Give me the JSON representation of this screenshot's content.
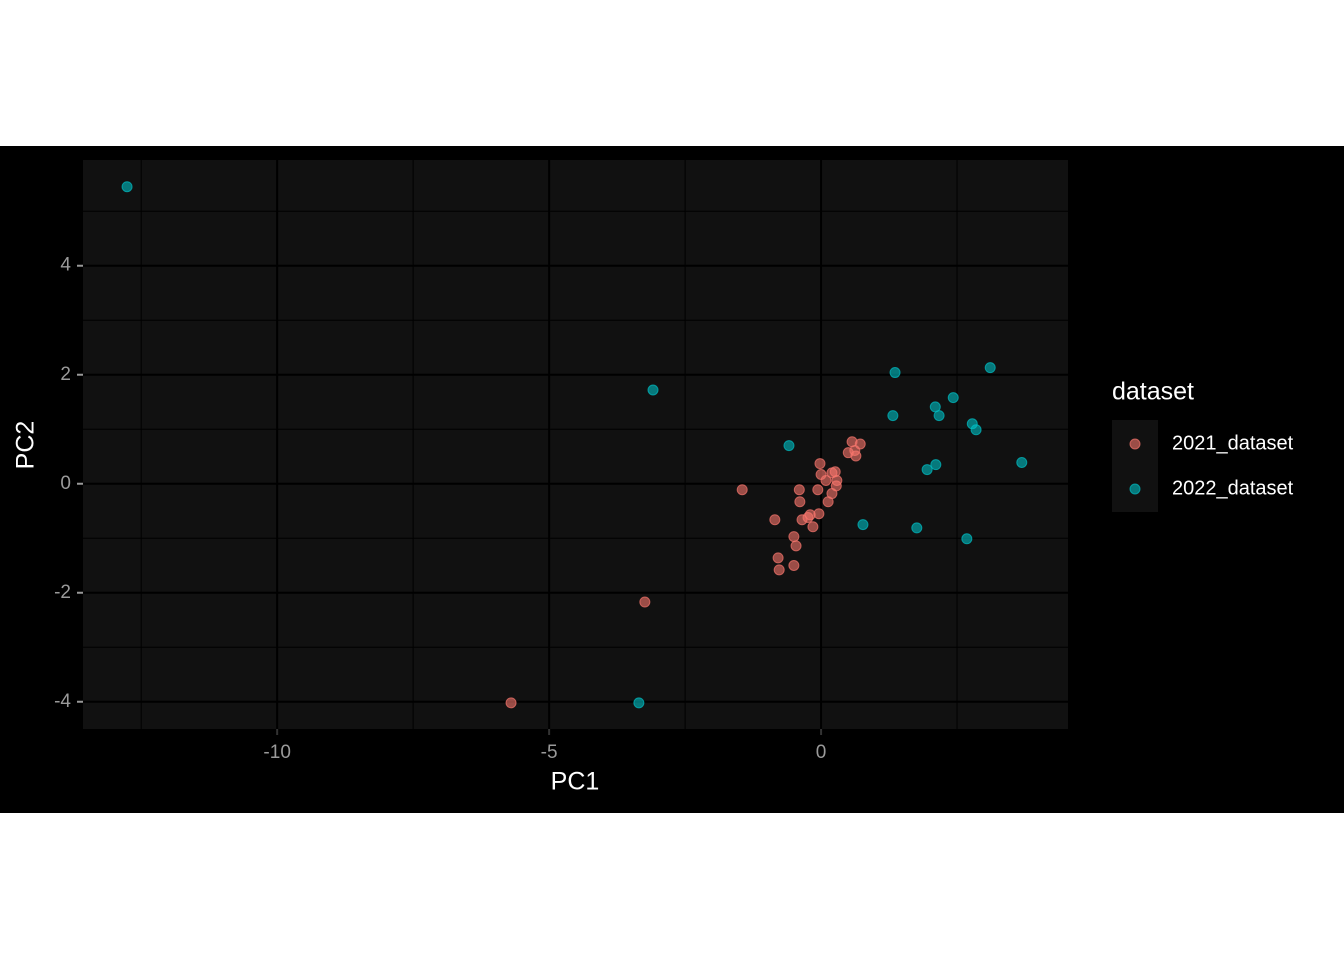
{
  "chart_data": {
    "type": "scatter",
    "x_label": "PC1",
    "y_label": "PC2",
    "legend_title": "dataset",
    "legend": "right",
    "grid": true,
    "xlim": [
      -13.57,
      4.54
    ],
    "ylim": [
      -4.5,
      5.94
    ],
    "xticks": [
      -10,
      -5,
      0
    ],
    "yticks": [
      -4,
      -2,
      0,
      2,
      4
    ],
    "series": [
      {
        "name": "2021_dataset",
        "color": "#F8766D",
        "x": [
          -5.7,
          -3.24,
          -1.45,
          -0.85,
          -0.79,
          -0.77,
          -0.5,
          -0.46,
          -0.5,
          -0.4,
          -0.39,
          -0.35,
          -0.24,
          -0.2,
          -0.15,
          -0.06,
          -0.04,
          -0.02,
          0.0,
          0.09,
          0.13,
          0.2,
          0.2,
          0.26,
          0.28,
          0.29,
          0.5,
          0.57,
          0.62,
          0.64,
          0.72
        ],
        "values": [
          -4.02,
          -2.17,
          -0.11,
          -0.66,
          -1.36,
          -1.58,
          -1.5,
          -1.14,
          -0.97,
          -0.11,
          -0.33,
          -0.66,
          -0.62,
          -0.57,
          -0.79,
          -0.11,
          -0.55,
          0.37,
          0.17,
          0.06,
          -0.33,
          -0.18,
          0.2,
          0.22,
          -0.04,
          0.06,
          0.57,
          0.77,
          0.61,
          0.51,
          0.73
        ]
      },
      {
        "name": "2022_dataset",
        "color": "#00BFC4",
        "x": [
          -12.76,
          -3.09,
          -3.35,
          -0.59,
          1.36,
          1.32,
          2.1,
          2.17,
          2.43,
          3.11,
          2.78,
          2.85,
          3.69,
          2.11,
          1.95,
          0.77,
          1.76,
          2.68
        ],
        "values": [
          5.45,
          1.72,
          -4.02,
          0.7,
          2.04,
          1.25,
          1.41,
          1.25,
          1.58,
          2.13,
          1.1,
          0.99,
          0.39,
          0.35,
          0.26,
          -0.75,
          -0.81,
          -1.01
        ]
      }
    ]
  }
}
